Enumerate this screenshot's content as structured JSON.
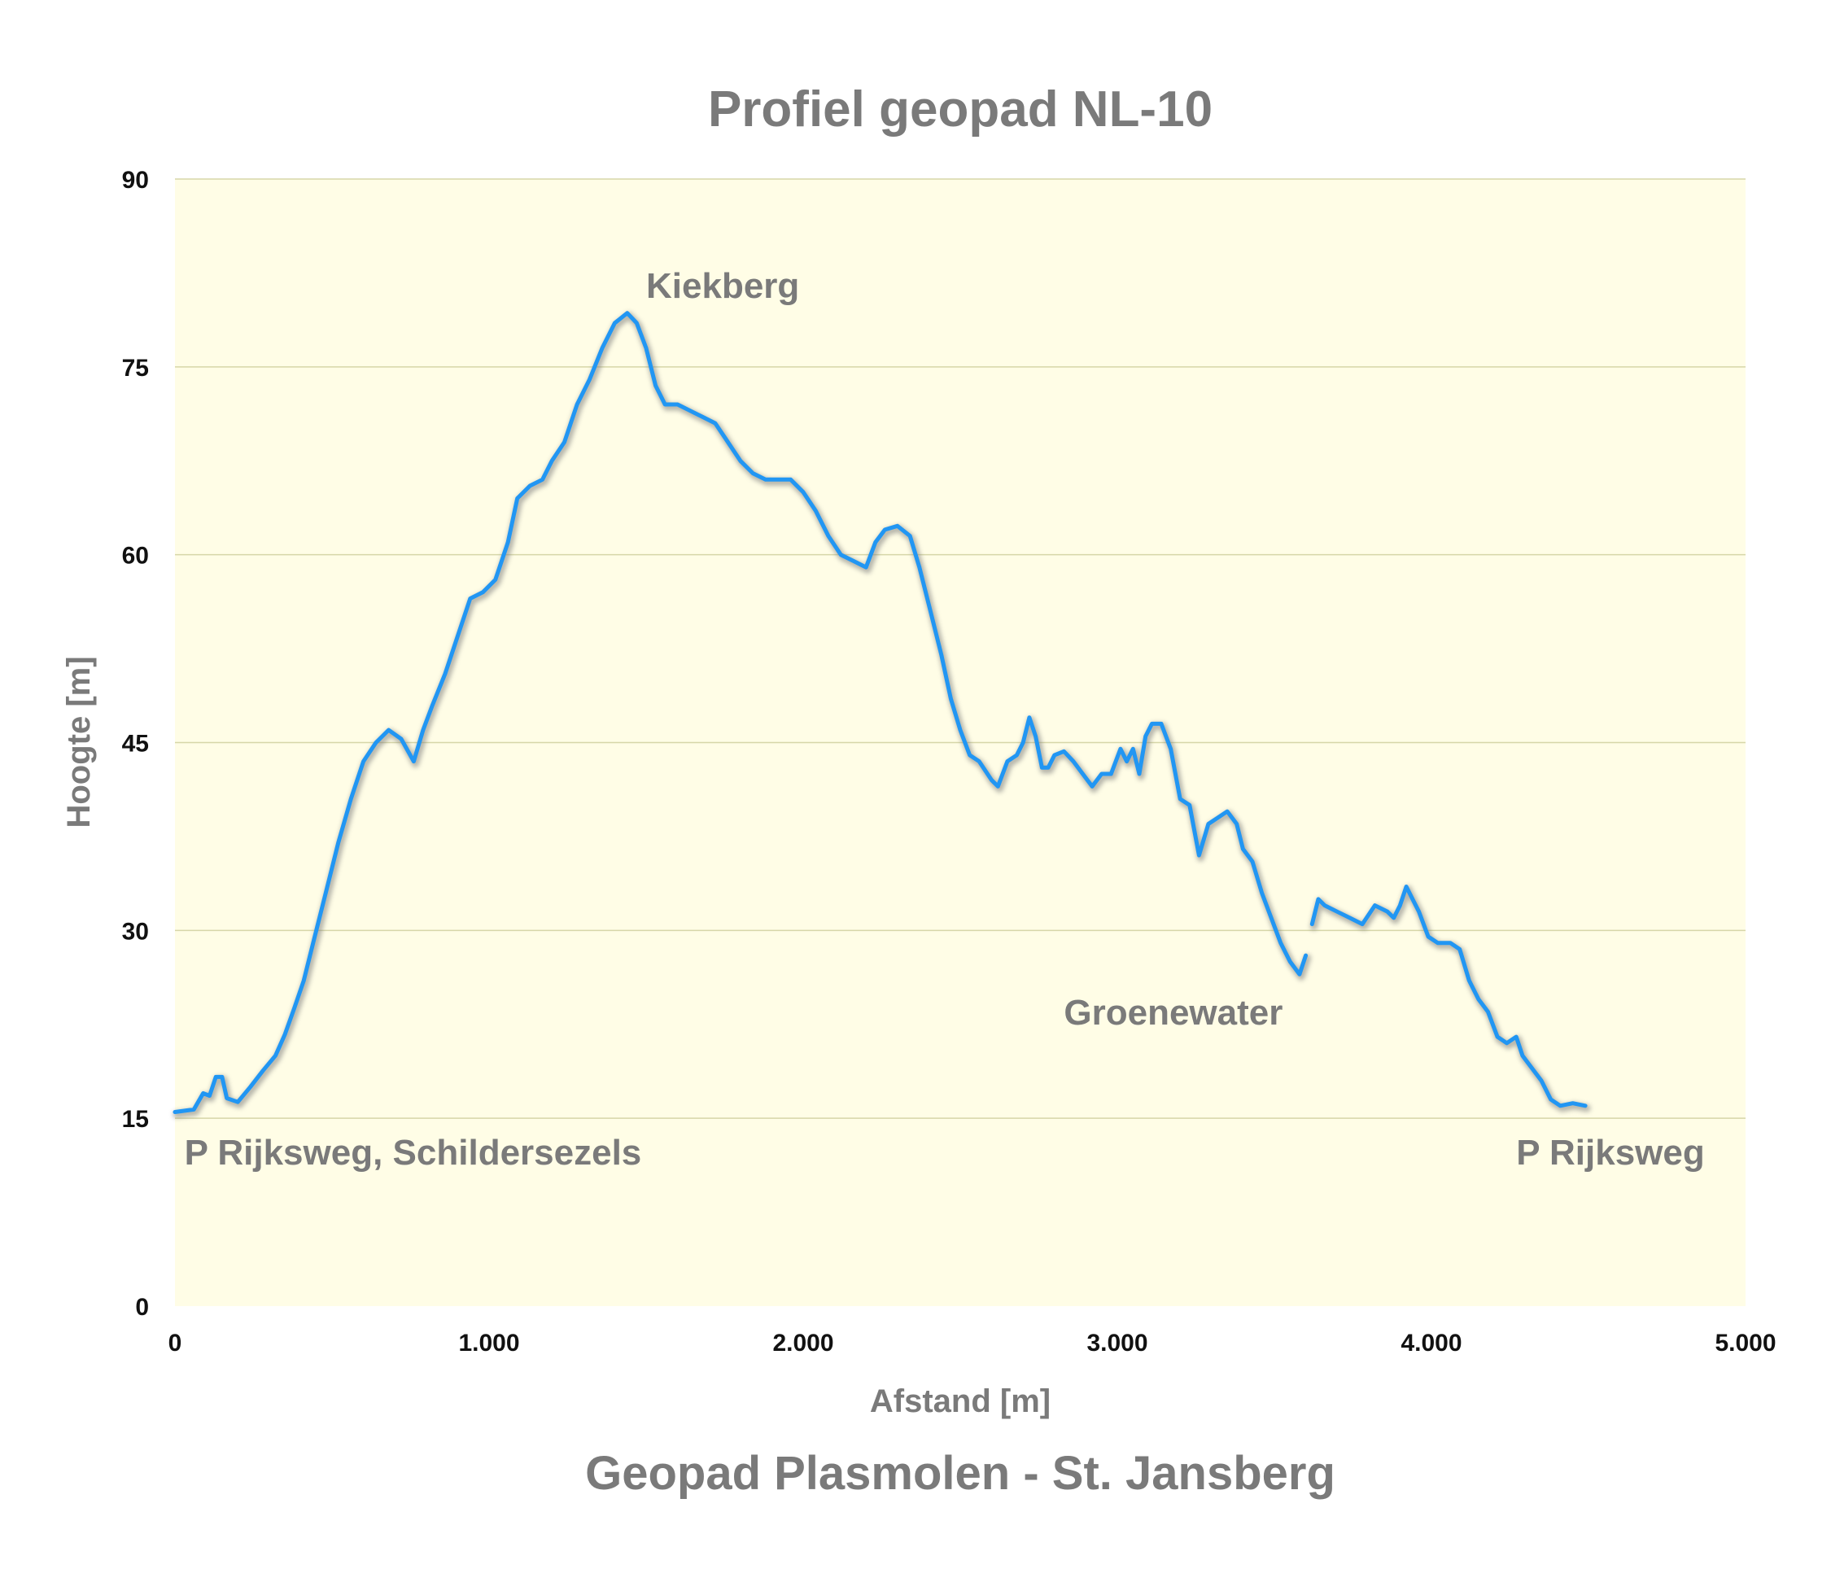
{
  "colors": {
    "plot_background": "#fffde6",
    "gridline": "#d6d6a8",
    "line": "#2196f3",
    "shadow": "#7a7a7a",
    "title_text": "#7a7a7a",
    "tick_text": "#111111"
  },
  "chart_data": {
    "type": "line",
    "title": "Profiel geopad NL-10",
    "subtitle": "Geopad Plasmolen - St. Jansberg",
    "xlabel": "Afstand [m]",
    "ylabel": "Hoogte [m]",
    "xlim": [
      0,
      5000
    ],
    "ylim": [
      0,
      90
    ],
    "xticks": [
      0,
      1000,
      2000,
      3000,
      4000,
      5000
    ],
    "xtick_labels": [
      "0",
      "1.000",
      "2.000",
      "3.000",
      "4.000",
      "5.000"
    ],
    "yticks": [
      0,
      15,
      30,
      45,
      60,
      75,
      90
    ],
    "ytick_labels": [
      "0",
      "15",
      "30",
      "45",
      "60",
      "75",
      "90"
    ],
    "grid": "horizontal",
    "legend": "none",
    "annotations": [
      {
        "text": "Kiekberg",
        "x": 1500,
        "y": 80.5
      },
      {
        "text": "Groenewater",
        "x": 2830,
        "y": 22.5
      },
      {
        "text": "P Rijksweg, Schildersezels",
        "x": 30,
        "y": 11.3
      },
      {
        "text": "P Rijksweg",
        "x": 4270,
        "y": 11.3
      }
    ],
    "series": [
      {
        "segments": [
          [
            [
              0,
              15.5
            ],
            [
              60,
              15.7
            ],
            [
              90,
              17.0
            ],
            [
              110,
              16.8
            ],
            [
              130,
              18.3
            ],
            [
              150,
              18.3
            ],
            [
              165,
              16.6
            ],
            [
              200,
              16.3
            ],
            [
              240,
              17.5
            ],
            [
              280,
              18.8
            ],
            [
              320,
              20.0
            ],
            [
              350,
              21.7
            ],
            [
              380,
              23.8
            ],
            [
              410,
              26.0
            ],
            [
              440,
              29.0
            ],
            [
              480,
              33.0
            ],
            [
              520,
              37.0
            ],
            [
              560,
              40.5
            ],
            [
              600,
              43.5
            ],
            [
              640,
              45.0
            ],
            [
              680,
              46.0
            ],
            [
              720,
              45.3
            ],
            [
              760,
              43.5
            ],
            [
              790,
              46.0
            ],
            [
              820,
              48.0
            ],
            [
              860,
              50.5
            ],
            [
              900,
              53.5
            ],
            [
              940,
              56.5
            ],
            [
              980,
              57.0
            ],
            [
              1020,
              58.0
            ],
            [
              1060,
              61.0
            ],
            [
              1090,
              64.5
            ],
            [
              1130,
              65.5
            ],
            [
              1170,
              66.0
            ],
            [
              1200,
              67.5
            ],
            [
              1240,
              69.0
            ],
            [
              1280,
              72.0
            ],
            [
              1320,
              74.0
            ],
            [
              1360,
              76.5
            ],
            [
              1400,
              78.5
            ],
            [
              1440,
              79.3
            ],
            [
              1470,
              78.5
            ],
            [
              1500,
              76.5
            ],
            [
              1530,
              73.5
            ],
            [
              1560,
              72.0
            ],
            [
              1600,
              72.0
            ],
            [
              1640,
              71.5
            ],
            [
              1680,
              71.0
            ],
            [
              1720,
              70.5
            ],
            [
              1760,
              69.0
            ],
            [
              1800,
              67.5
            ],
            [
              1840,
              66.5
            ],
            [
              1880,
              66.0
            ],
            [
              1920,
              66.0
            ],
            [
              1960,
              66.0
            ],
            [
              2000,
              65.0
            ],
            [
              2040,
              63.5
            ],
            [
              2080,
              61.5
            ],
            [
              2120,
              60.0
            ],
            [
              2160,
              59.5
            ],
            [
              2200,
              59.0
            ],
            [
              2230,
              61.0
            ],
            [
              2260,
              62.0
            ],
            [
              2300,
              62.3
            ],
            [
              2340,
              61.5
            ],
            [
              2370,
              59.0
            ],
            [
              2400,
              56.0
            ],
            [
              2440,
              52.0
            ],
            [
              2470,
              48.5
            ],
            [
              2500,
              46.0
            ],
            [
              2530,
              44.0
            ],
            [
              2560,
              43.5
            ],
            [
              2600,
              42.0
            ],
            [
              2620,
              41.5
            ],
            [
              2650,
              43.5
            ],
            [
              2680,
              44.0
            ],
            [
              2700,
              45.0
            ],
            [
              2720,
              47.0
            ],
            [
              2740,
              45.5
            ],
            [
              2760,
              43.0
            ],
            [
              2780,
              43.0
            ],
            [
              2800,
              44.0
            ],
            [
              2830,
              44.3
            ],
            [
              2860,
              43.5
            ],
            [
              2890,
              42.5
            ],
            [
              2920,
              41.5
            ],
            [
              2950,
              42.5
            ],
            [
              2980,
              42.5
            ],
            [
              3010,
              44.5
            ],
            [
              3030,
              43.5
            ],
            [
              3050,
              44.5
            ],
            [
              3070,
              42.5
            ],
            [
              3090,
              45.5
            ],
            [
              3110,
              46.5
            ],
            [
              3140,
              46.5
            ],
            [
              3170,
              44.5
            ],
            [
              3200,
              40.5
            ],
            [
              3230,
              40.0
            ],
            [
              3260,
              36.0
            ],
            [
              3290,
              38.5
            ],
            [
              3320,
              39.0
            ],
            [
              3350,
              39.5
            ],
            [
              3380,
              38.5
            ],
            [
              3400,
              36.5
            ],
            [
              3430,
              35.5
            ],
            [
              3460,
              33.0
            ],
            [
              3490,
              31.0
            ],
            [
              3520,
              29.0
            ],
            [
              3550,
              27.5
            ],
            [
              3580,
              26.5
            ],
            [
              3600,
              28.0
            ]
          ],
          [
            [
              3620,
              30.5
            ],
            [
              3640,
              32.5
            ],
            [
              3660,
              32.0
            ],
            [
              3700,
              31.5
            ],
            [
              3740,
              31.0
            ],
            [
              3780,
              30.5
            ],
            [
              3820,
              32.0
            ],
            [
              3860,
              31.5
            ],
            [
              3880,
              31.0
            ],
            [
              3900,
              32.0
            ],
            [
              3920,
              33.5
            ],
            [
              3940,
              32.5
            ],
            [
              3960,
              31.5
            ],
            [
              3990,
              29.5
            ],
            [
              4020,
              29.0
            ],
            [
              4060,
              29.0
            ],
            [
              4090,
              28.5
            ],
            [
              4120,
              26.0
            ],
            [
              4150,
              24.5
            ],
            [
              4180,
              23.5
            ],
            [
              4210,
              21.5
            ],
            [
              4240,
              21.0
            ],
            [
              4270,
              21.5
            ],
            [
              4290,
              20.0
            ],
            [
              4320,
              19.0
            ],
            [
              4350,
              18.0
            ],
            [
              4380,
              16.5
            ],
            [
              4410,
              16.0
            ],
            [
              4450,
              16.2
            ],
            [
              4490,
              16.0
            ]
          ]
        ]
      }
    ]
  }
}
